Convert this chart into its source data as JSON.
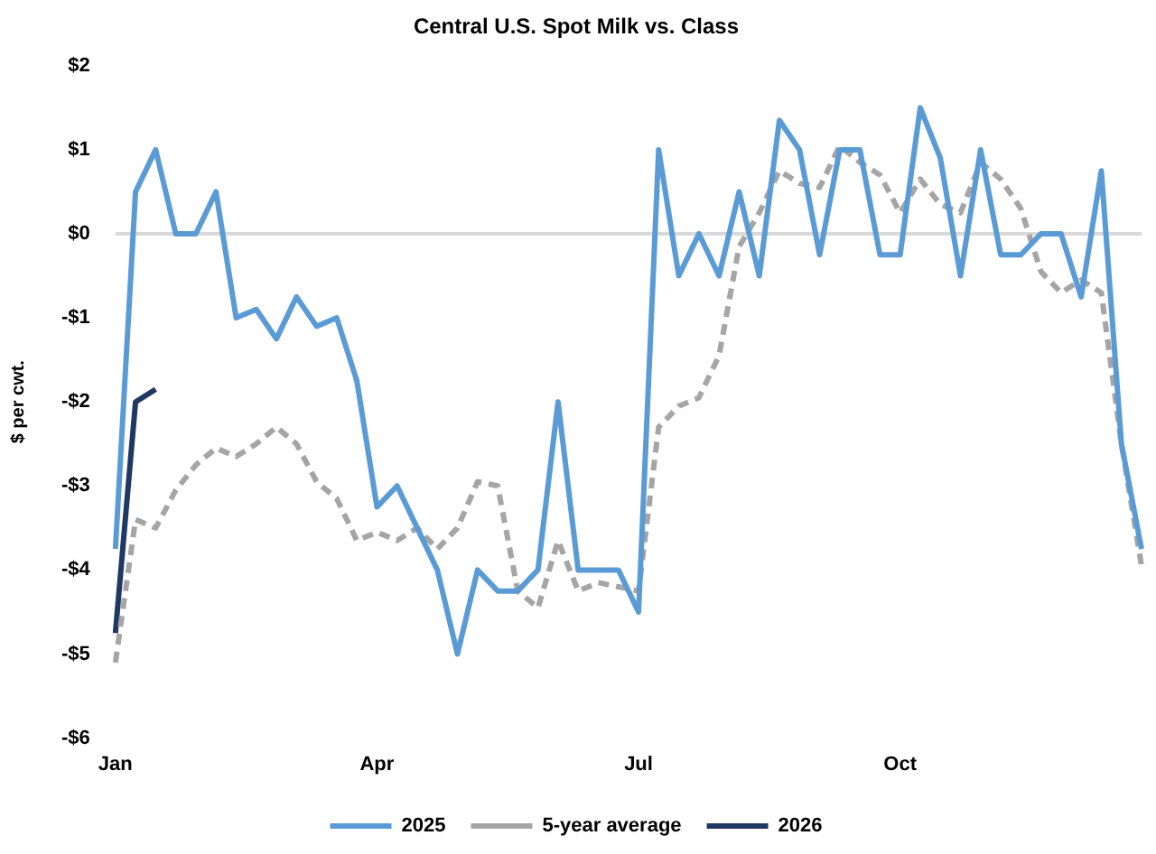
{
  "chart_data": {
    "type": "line",
    "title": "Central U.S. Spot Milk vs. Class",
    "ylabel": "$ per cwt.",
    "categories": [
      "Jan",
      null,
      null,
      null,
      null,
      null,
      null,
      null,
      null,
      null,
      null,
      null,
      null,
      "Apr",
      null,
      null,
      null,
      null,
      null,
      null,
      null,
      null,
      null,
      null,
      null,
      null,
      "Jul",
      null,
      null,
      null,
      null,
      null,
      null,
      null,
      null,
      null,
      null,
      null,
      null,
      "Oct",
      null,
      null,
      null,
      null,
      null,
      null,
      null,
      null,
      null,
      null,
      null,
      null
    ],
    "series": [
      {
        "name": "2025",
        "color": "#5b9bd5",
        "line_style": "solid",
        "values": [
          -3.75,
          0.5,
          1.0,
          0,
          0,
          0.5,
          -1.0,
          -0.9,
          -1.25,
          -0.75,
          -1.1,
          -1.0,
          -1.75,
          -3.25,
          -3.0,
          -3.5,
          -4.0,
          -5.0,
          -4.0,
          -4.25,
          -4.25,
          -4.0,
          -2.0,
          -4.0,
          -4.0,
          -4.0,
          -4.5,
          1.0,
          -0.5,
          0,
          -0.5,
          0.5,
          -0.5,
          1.35,
          1.0,
          -0.25,
          1.0,
          1.0,
          -0.25,
          -0.25,
          1.5,
          0.9,
          -0.5,
          1.0,
          -0.25,
          -0.25,
          0,
          0,
          -0.75,
          0.75,
          -2.5,
          -3.75
        ]
      },
      {
        "name": "5-year average",
        "color": "#a5a5a5",
        "line_style": "dashed",
        "values": [
          -5.1,
          -3.4,
          -3.5,
          -3.05,
          -2.75,
          -2.55,
          -2.65,
          -2.5,
          -2.3,
          -2.5,
          -2.95,
          -3.15,
          -3.65,
          -3.55,
          -3.65,
          -3.5,
          -3.75,
          -3.5,
          -2.95,
          -3.0,
          -4.25,
          -4.45,
          -3.65,
          -4.25,
          -4.15,
          -4.2,
          -4.25,
          -2.3,
          -2.05,
          -1.95,
          -1.45,
          -0.15,
          0.25,
          0.75,
          0.6,
          0.55,
          1.05,
          0.85,
          0.7,
          0.25,
          0.65,
          0.35,
          0.25,
          0.85,
          0.65,
          0.3,
          -0.45,
          -0.7,
          -0.55,
          -0.7,
          -2.5,
          -3.95
        ]
      },
      {
        "name": "2026",
        "color": "#1f3864",
        "line_style": "solid",
        "values": [
          -4.75,
          -2.0,
          -1.85,
          null,
          null,
          null,
          null,
          null,
          null,
          null,
          null,
          null,
          null,
          null,
          null,
          null,
          null,
          null,
          null,
          null,
          null,
          null,
          null,
          null,
          null,
          null,
          null,
          null,
          null,
          null,
          null,
          null,
          null,
          null,
          null,
          null,
          null,
          null,
          null,
          null,
          null,
          null,
          null,
          null,
          null,
          null,
          null,
          null,
          null,
          null,
          null,
          null
        ]
      }
    ],
    "ylim": [
      -6,
      2
    ],
    "yticks": [
      {
        "value": 2,
        "label": "$2"
      },
      {
        "value": 1,
        "label": "$1"
      },
      {
        "value": 0,
        "label": "$0"
      },
      {
        "value": -1,
        "label": "-$1"
      },
      {
        "value": -2,
        "label": "-$2"
      },
      {
        "value": -3,
        "label": "-$3"
      },
      {
        "value": -4,
        "label": "-$4"
      },
      {
        "value": -5,
        "label": "-$5"
      },
      {
        "value": -6,
        "label": "-$6"
      }
    ],
    "grid": false,
    "legend": "bottom",
    "marker": "none",
    "ref_lines": [
      {
        "axis": "y",
        "value": 0,
        "color": "#d9d9d9"
      }
    ]
  }
}
